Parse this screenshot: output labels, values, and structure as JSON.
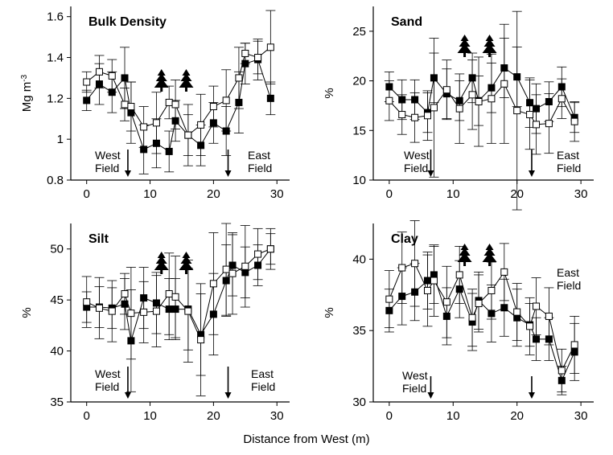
{
  "figure": {
    "xlabel": "Distance from West (m)"
  },
  "chart_data": [
    {
      "type": "line",
      "title": "Bulk Density",
      "ylabel": "Mg m",
      "ylabel_sup": "-3",
      "xlim": [
        -2.5,
        32
      ],
      "ylim": [
        0.8,
        1.65
      ],
      "xticks": [
        0,
        10,
        20,
        30
      ],
      "yticks": [
        0.8,
        1,
        1.2,
        1.4,
        1.6
      ],
      "ytick_labels": [
        "0.8",
        "1",
        "1.2",
        "1.4",
        "1.6"
      ],
      "series": [
        {
          "marker": "filled-square",
          "x": [
            0,
            2,
            4,
            6,
            7,
            9,
            11,
            13,
            14,
            16,
            18,
            20,
            22,
            24,
            25,
            27,
            29
          ],
          "y": [
            1.19,
            1.27,
            1.23,
            1.3,
            1.13,
            0.95,
            0.98,
            0.94,
            1.09,
            1.02,
            0.97,
            1.08,
            1.04,
            1.18,
            1.37,
            1.39,
            1.2
          ],
          "err": [
            0.05,
            0.1,
            0.1,
            0.15,
            0.15,
            0.12,
            0.12,
            0.1,
            0.1,
            0.1,
            0.1,
            0.1,
            0.12,
            0.15,
            0.1,
            0.1,
            0.08
          ]
        },
        {
          "marker": "open-square",
          "x": [
            0,
            2,
            4,
            6,
            7,
            9,
            11,
            13,
            14,
            16,
            18,
            20,
            22,
            24,
            25,
            27,
            29
          ],
          "y": [
            1.28,
            1.33,
            1.31,
            1.17,
            1.16,
            1.06,
            1.08,
            1.18,
            1.17,
            1.02,
            1.07,
            1.16,
            1.19,
            1.3,
            1.42,
            1.4,
            1.45
          ],
          "err": [
            0.05,
            0.08,
            0.08,
            0.08,
            0.12,
            0.1,
            0.15,
            0.08,
            0.12,
            0.15,
            0.15,
            0.1,
            0.15,
            0.15,
            0.05,
            0.08,
            0.18
          ]
        }
      ],
      "annotations": {
        "west": {
          "text1": "West",
          "text2": "Field",
          "arrow_x": 6.5
        },
        "east": {
          "text1": "East",
          "text2": "Field",
          "arrow_x": 22.3
        }
      },
      "trees_at": [
        11.8,
        15.7
      ]
    },
    {
      "type": "line",
      "title": "Sand",
      "ylabel": "%",
      "xlim": [
        -2.5,
        32
      ],
      "ylim": [
        10,
        27.5
      ],
      "xticks": [
        0,
        10,
        20,
        30
      ],
      "yticks": [
        10,
        15,
        20,
        25
      ],
      "ytick_labels": [
        "10",
        "15",
        "20",
        "25"
      ],
      "series": [
        {
          "marker": "filled-square",
          "x": [
            0,
            2,
            4,
            6,
            7,
            9,
            11,
            13,
            14,
            16,
            18,
            20,
            22,
            23,
            25,
            27,
            29
          ],
          "y": [
            19.4,
            18.1,
            18.1,
            16.8,
            20.3,
            18.7,
            18.0,
            20.3,
            18.0,
            19.3,
            21.3,
            20.4,
            17.8,
            17.2,
            17.9,
            19.4,
            16.3
          ],
          "err": [
            1.5,
            2.0,
            2.0,
            2.0,
            2.5,
            2.5,
            2.0,
            2.5,
            2.5,
            2.5,
            3.0,
            3.0,
            2.5,
            2.5,
            2.0,
            2.0,
            1.5
          ]
        },
        {
          "marker": "open-square",
          "x": [
            0,
            2,
            4,
            6,
            7,
            9,
            11,
            13,
            14,
            16,
            18,
            20,
            22,
            23,
            25,
            27,
            29
          ],
          "y": [
            18.0,
            16.6,
            16.3,
            16.5,
            17.3,
            19.1,
            17.2,
            18.6,
            17.9,
            18.2,
            19.7,
            17.0,
            16.6,
            15.6,
            15.7,
            18.2,
            15.9
          ],
          "err": [
            2.0,
            2.0,
            2.5,
            2.5,
            7.0,
            3.0,
            3.5,
            3.5,
            4.5,
            4.5,
            6.0,
            10.0,
            3.5,
            3.0,
            3.0,
            2.0,
            2.0
          ]
        }
      ],
      "annotations": {
        "west": {
          "text1": "West",
          "text2": "Field",
          "arrow_x": 6.5
        },
        "east": {
          "text1": "East",
          "text2": "Field",
          "arrow_x": 22.3
        }
      },
      "trees_at": [
        11.8,
        15.7
      ]
    },
    {
      "type": "line",
      "title": "Silt",
      "ylabel": "%",
      "xlim": [
        -2.5,
        32
      ],
      "ylim": [
        35,
        52.5
      ],
      "xticks": [
        0,
        10,
        20,
        30
      ],
      "yticks": [
        35,
        40,
        45,
        50
      ],
      "ytick_labels": [
        "35",
        "40",
        "45",
        "50"
      ],
      "series": [
        {
          "marker": "filled-square",
          "x": [
            0,
            2,
            4,
            6,
            7,
            9,
            11,
            13,
            14,
            16,
            18,
            20,
            22,
            23,
            25,
            27,
            29
          ],
          "y": [
            44.3,
            44.3,
            44.2,
            44.6,
            41.0,
            45.2,
            44.7,
            44.1,
            44.1,
            44.1,
            41.6,
            43.6,
            46.9,
            48.4,
            47.7,
            48.4,
            50.0
          ],
          "err": [
            1.5,
            2.0,
            2.0,
            2.5,
            5.0,
            3.0,
            3.0,
            3.0,
            3.0,
            4.0,
            4.0,
            4.0,
            3.5,
            3.0,
            2.5,
            2.0,
            1.5
          ]
        },
        {
          "marker": "open-square",
          "x": [
            0,
            2,
            4,
            6,
            7,
            9,
            11,
            13,
            14,
            16,
            18,
            20,
            22,
            23,
            25,
            27,
            29
          ],
          "y": [
            44.8,
            44.2,
            43.9,
            45.6,
            43.7,
            43.8,
            43.9,
            45.6,
            45.3,
            43.9,
            41.1,
            46.6,
            48.0,
            47.6,
            48.3,
            49.5,
            50.0
          ],
          "err": [
            2.5,
            3.0,
            3.0,
            2.0,
            4.5,
            3.0,
            3.5,
            4.0,
            4.0,
            5.0,
            5.5,
            5.0,
            4.5,
            4.0,
            4.0,
            2.5,
            2.0
          ]
        }
      ],
      "annotations": {
        "west": {
          "text1": "West",
          "text2": "Field",
          "arrow_x": 6.5
        },
        "east": {
          "text1": "East",
          "text2": "Field",
          "arrow_x": 22.3
        }
      },
      "trees_at": [
        11.8,
        15.7
      ]
    },
    {
      "type": "line",
      "title": "Clay",
      "ylabel": "%",
      "xlim": [
        -2.5,
        32
      ],
      "ylim": [
        30,
        42.5
      ],
      "xticks": [
        0,
        10,
        20,
        30
      ],
      "yticks": [
        30,
        35,
        40
      ],
      "ytick_labels": [
        "30",
        "35",
        "40"
      ],
      "series": [
        {
          "marker": "filled-square",
          "x": [
            0,
            2,
            4,
            6,
            7,
            9,
            11,
            13,
            14,
            16,
            18,
            20,
            22,
            23,
            25,
            27,
            29
          ],
          "y": [
            36.4,
            37.4,
            37.7,
            38.5,
            38.9,
            36.0,
            37.9,
            35.6,
            37.1,
            36.2,
            36.6,
            35.9,
            35.4,
            34.4,
            34.4,
            31.5,
            33.5
          ],
          "err": [
            1.5,
            2.0,
            2.0,
            2.0,
            2.0,
            2.0,
            2.0,
            2.0,
            2.0,
            2.0,
            2.0,
            2.0,
            1.5,
            1.5,
            1.5,
            1.0,
            2.0
          ]
        },
        {
          "marker": "open-square",
          "x": [
            0,
            2,
            4,
            6,
            7,
            9,
            11,
            13,
            14,
            16,
            18,
            20,
            22,
            23,
            25,
            27,
            29
          ],
          "y": [
            37.2,
            39.4,
            39.7,
            37.8,
            38.5,
            37.0,
            38.9,
            35.9,
            36.9,
            37.8,
            39.1,
            36.3,
            35.3,
            36.7,
            36.0,
            32.2,
            34.0
          ],
          "err": [
            2.0,
            2.5,
            3.0,
            2.5,
            2.5,
            2.5,
            2.0,
            2.0,
            2.0,
            2.0,
            2.0,
            2.0,
            2.0,
            2.0,
            2.0,
            1.5,
            2.0
          ]
        }
      ],
      "annotations": {
        "west": {
          "text1": "West",
          "text2": "Field",
          "arrow_x": 6.5
        },
        "east": {
          "text1": "East",
          "text2": "Field",
          "arrow_x": 22.3
        }
      },
      "trees_at": [
        11.8,
        15.7
      ]
    }
  ]
}
